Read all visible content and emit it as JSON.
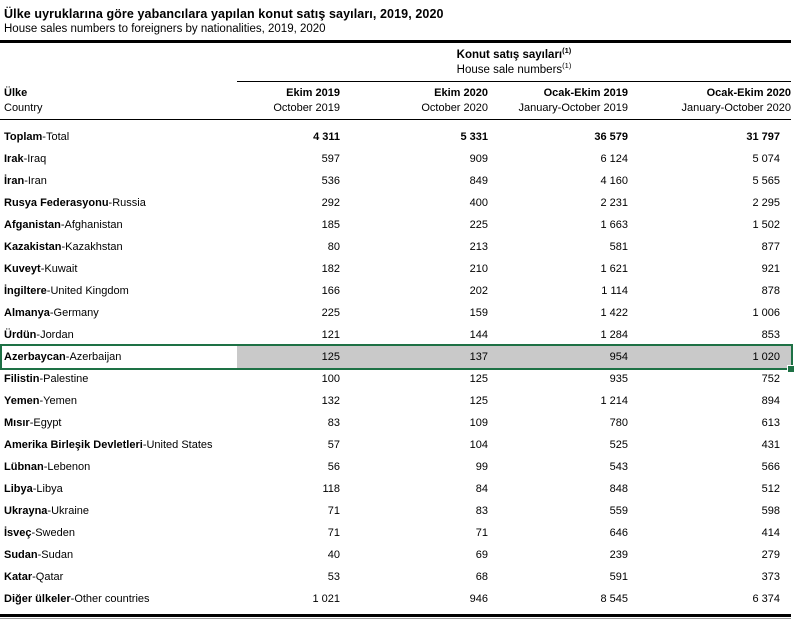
{
  "page": {
    "title_tr": "Ülke uyruklarına göre yabancılara yapılan konut satış sayıları, 2019, 2020",
    "title_en": "House sales numbers to foreigners by nationalities, 2019, 2020"
  },
  "table": {
    "group_header": {
      "tr": "Konut satış sayıları",
      "en": "House sale numbers",
      "footnote_mark": "(1)"
    },
    "label_column": {
      "tr": "Ülke",
      "en": "Country"
    },
    "columns": [
      {
        "tr": "Ekim 2019",
        "en": "October 2019"
      },
      {
        "tr": "Ekim 2020",
        "en": "October 2020"
      },
      {
        "tr": "Ocak-Ekim 2019",
        "en": "January-October 2019"
      },
      {
        "tr": "Ocak-Ekim 2020",
        "en": "January-October 2020"
      }
    ],
    "rows": [
      {
        "tr": "Toplam",
        "sep": " - ",
        "en": "Total",
        "values": [
          "4 311",
          "5 331",
          "36 579",
          "31 797"
        ],
        "bold": true
      },
      {
        "tr": "Irak",
        "sep": " - ",
        "en": "Iraq",
        "values": [
          "597",
          "909",
          "6 124",
          "5 074"
        ]
      },
      {
        "tr": "İran",
        "sep": " - ",
        "en": "Iran",
        "values": [
          "536",
          "849",
          "4 160",
          "5 565"
        ]
      },
      {
        "tr": "Rusya Federasyonu",
        "sep": " - ",
        "en": "Russia",
        "values": [
          "292",
          "400",
          "2 231",
          "2 295"
        ]
      },
      {
        "tr": "Afganistan",
        "sep": " - ",
        "en": "Afghanistan",
        "values": [
          "185",
          "225",
          "1 663",
          "1 502"
        ]
      },
      {
        "tr": "Kazakistan",
        "sep": " -",
        "en": "Kazakhstan",
        "values": [
          "80",
          "213",
          "581",
          "877"
        ]
      },
      {
        "tr": "Kuveyt",
        "sep": " - ",
        "en": "Kuwait",
        "values": [
          "182",
          "210",
          "1 621",
          "921"
        ]
      },
      {
        "tr": "İngiltere",
        "sep": " - ",
        "en": "United Kingdom",
        "values": [
          "166",
          "202",
          "1 114",
          "878"
        ]
      },
      {
        "tr": "Almanya",
        "sep": " - ",
        "en": "Germany",
        "values": [
          "225",
          "159",
          "1 422",
          "1 006"
        ]
      },
      {
        "tr": "Ürdün",
        "sep": " - ",
        "en": "Jordan",
        "values": [
          "121",
          "144",
          "1 284",
          "853"
        ]
      },
      {
        "tr": "Azerbaycan",
        "sep": " - ",
        "en": "Azerbaijan",
        "values": [
          "125",
          "137",
          "954",
          "1 020"
        ],
        "selected": true
      },
      {
        "tr": "Filistin",
        "sep": " - ",
        "en": "Palestine",
        "values": [
          "100",
          "125",
          "935",
          "752"
        ]
      },
      {
        "tr": "Yemen",
        "sep": " - ",
        "en": "Yemen",
        "values": [
          "132",
          "125",
          "1 214",
          "894"
        ]
      },
      {
        "tr": "Mısır",
        "sep": " - ",
        "en": "Egypt",
        "values": [
          "83",
          "109",
          "780",
          "613"
        ]
      },
      {
        "tr": "Amerika Birleşik Devletleri",
        "sep": " - ",
        "en": "United States",
        "values": [
          "57",
          "104",
          "525",
          "431"
        ]
      },
      {
        "tr": "Lübnan",
        "sep": " - ",
        "en": "Lebenon",
        "values": [
          "56",
          "99",
          "543",
          "566"
        ]
      },
      {
        "tr": "Libya",
        "sep": " - ",
        "en": "Libya",
        "values": [
          "118",
          "84",
          "848",
          "512"
        ]
      },
      {
        "tr": "Ukrayna",
        "sep": " - ",
        "en": "Ukraine",
        "values": [
          "71",
          "83",
          "559",
          "598"
        ]
      },
      {
        "tr": "İsveç",
        "sep": " - ",
        "en": "Sweden",
        "values": [
          "71",
          "71",
          "646",
          "414"
        ]
      },
      {
        "tr": "Sudan",
        "sep": " - ",
        "en": "Sudan",
        "values": [
          "40",
          "69",
          "239",
          "279"
        ]
      },
      {
        "tr": "Katar",
        "sep": " - ",
        "en": "Qatar",
        "values": [
          "53",
          "68",
          "591",
          "373"
        ]
      },
      {
        "tr": "Diğer ülkeler",
        "sep": " - ",
        "en": "Other countries",
        "values": [
          "1 021",
          "946",
          "8 545",
          "6 374"
        ]
      }
    ]
  },
  "colors": {
    "selection_green": "#1E7145",
    "selection_fill": "#C9C9C9",
    "rule": "#000000"
  }
}
